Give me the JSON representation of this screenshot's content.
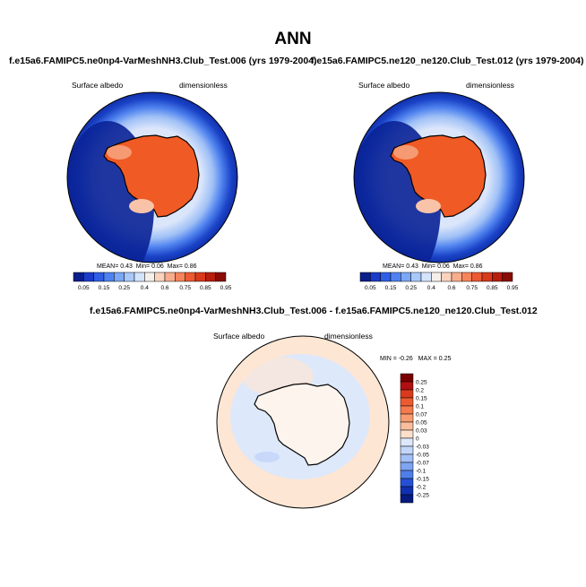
{
  "title": "ANN",
  "panels": [
    {
      "case": "f.e15a6.FAMIPC5.ne0np4-VarMeshNH3.Club_Test.006 (yrs 1979-2004)",
      "variable": "Surface albedo",
      "units": "dimensionless",
      "stats": {
        "mean_label": "MEAN=",
        "mean": "0.43",
        "min_label": "Min=",
        "min": "0.06",
        "max_label": "Max=",
        "max": "0.86"
      }
    },
    {
      "case": "f.e15a6.FAMIPC5.ne120_ne120.Club_Test.012 (yrs 1979-2004)",
      "variable": "Surface albedo",
      "units": "dimensionless",
      "stats": {
        "mean_label": "MEAN=",
        "mean": "0.43",
        "min_label": "Min=",
        "min": "0.06",
        "max_label": "Max=",
        "max": "0.86"
      }
    }
  ],
  "diff": {
    "case": "f.e15a6.FAMIPC5.ne0np4-VarMeshNH3.Club_Test.006 - f.e15a6.FAMIPC5.ne120_ne120.Club_Test.012",
    "variable": "Surface albedo",
    "units": "dimensionless",
    "stats": {
      "min_label": "MIN =",
      "min": "-0.26",
      "max_label": "MAX =",
      "max": "0.25"
    }
  },
  "chart_data": [
    {
      "type": "heatmap",
      "projection": "south-polar stereographic",
      "title": "f.e15a6.FAMIPC5.ne0np4-VarMeshNH3.Club_Test.006 (yrs 1979-2004)",
      "variable": "Surface albedo",
      "units": "dimensionless",
      "mean": 0.43,
      "min": 0.06,
      "max": 0.86,
      "colorbar_levels": [
        "0.05",
        "0.15",
        "0.25",
        "0.4",
        "0.6",
        "0.75",
        "0.85",
        "0.95"
      ],
      "colorbar_colors": [
        "#0a1e8c",
        "#1a3cc8",
        "#2f5ee6",
        "#4f82f0",
        "#7ba7f6",
        "#a9c8fa",
        "#d4e4fc",
        "#f6efe9",
        "#fbd3bd",
        "#f9ad8c",
        "#f5845c",
        "#ec5a32",
        "#d83a1a",
        "#b81e0c",
        "#8a0c06"
      ],
      "colorbar_orientation": "horizontal"
    },
    {
      "type": "heatmap",
      "projection": "south-polar stereographic",
      "title": "f.e15a6.FAMIPC5.ne120_ne120.Club_Test.012 (yrs 1979-2004)",
      "variable": "Surface albedo",
      "units": "dimensionless",
      "mean": 0.43,
      "min": 0.06,
      "max": 0.86,
      "colorbar_levels": [
        "0.05",
        "0.15",
        "0.25",
        "0.4",
        "0.6",
        "0.75",
        "0.85",
        "0.95"
      ],
      "colorbar_colors": [
        "#0a1e8c",
        "#1a3cc8",
        "#2f5ee6",
        "#4f82f0",
        "#7ba7f6",
        "#a9c8fa",
        "#d4e4fc",
        "#f6efe9",
        "#fbd3bd",
        "#f9ad8c",
        "#f5845c",
        "#ec5a32",
        "#d83a1a",
        "#b81e0c",
        "#8a0c06"
      ],
      "colorbar_orientation": "horizontal"
    },
    {
      "type": "heatmap",
      "projection": "south-polar stereographic",
      "title": "f.e15a6.FAMIPC5.ne0np4-VarMeshNH3.Club_Test.006 - f.e15a6.FAMIPC5.ne120_ne120.Club_Test.012",
      "variable": "Surface albedo",
      "units": "dimensionless",
      "min": -0.26,
      "max": 0.25,
      "colorbar_levels": [
        "0.25",
        "0.2",
        "0.15",
        "0.1",
        "0.07",
        "0.05",
        "0.03",
        "0",
        "-0.03",
        "-0.05",
        "-0.07",
        "-0.1",
        "-0.15",
        "-0.2",
        "-0.25"
      ],
      "colorbar_colors": [
        "#7a0000",
        "#b01010",
        "#d93a1c",
        "#ee5a30",
        "#f57a4c",
        "#f89c70",
        "#fbbe9c",
        "#fde0cc",
        "#dde8fb",
        "#c2d6fa",
        "#a3c0f7",
        "#7ea4f2",
        "#4f7ee8",
        "#2550d6",
        "#1030b0",
        "#071a80"
      ],
      "colorbar_orientation": "vertical"
    }
  ]
}
